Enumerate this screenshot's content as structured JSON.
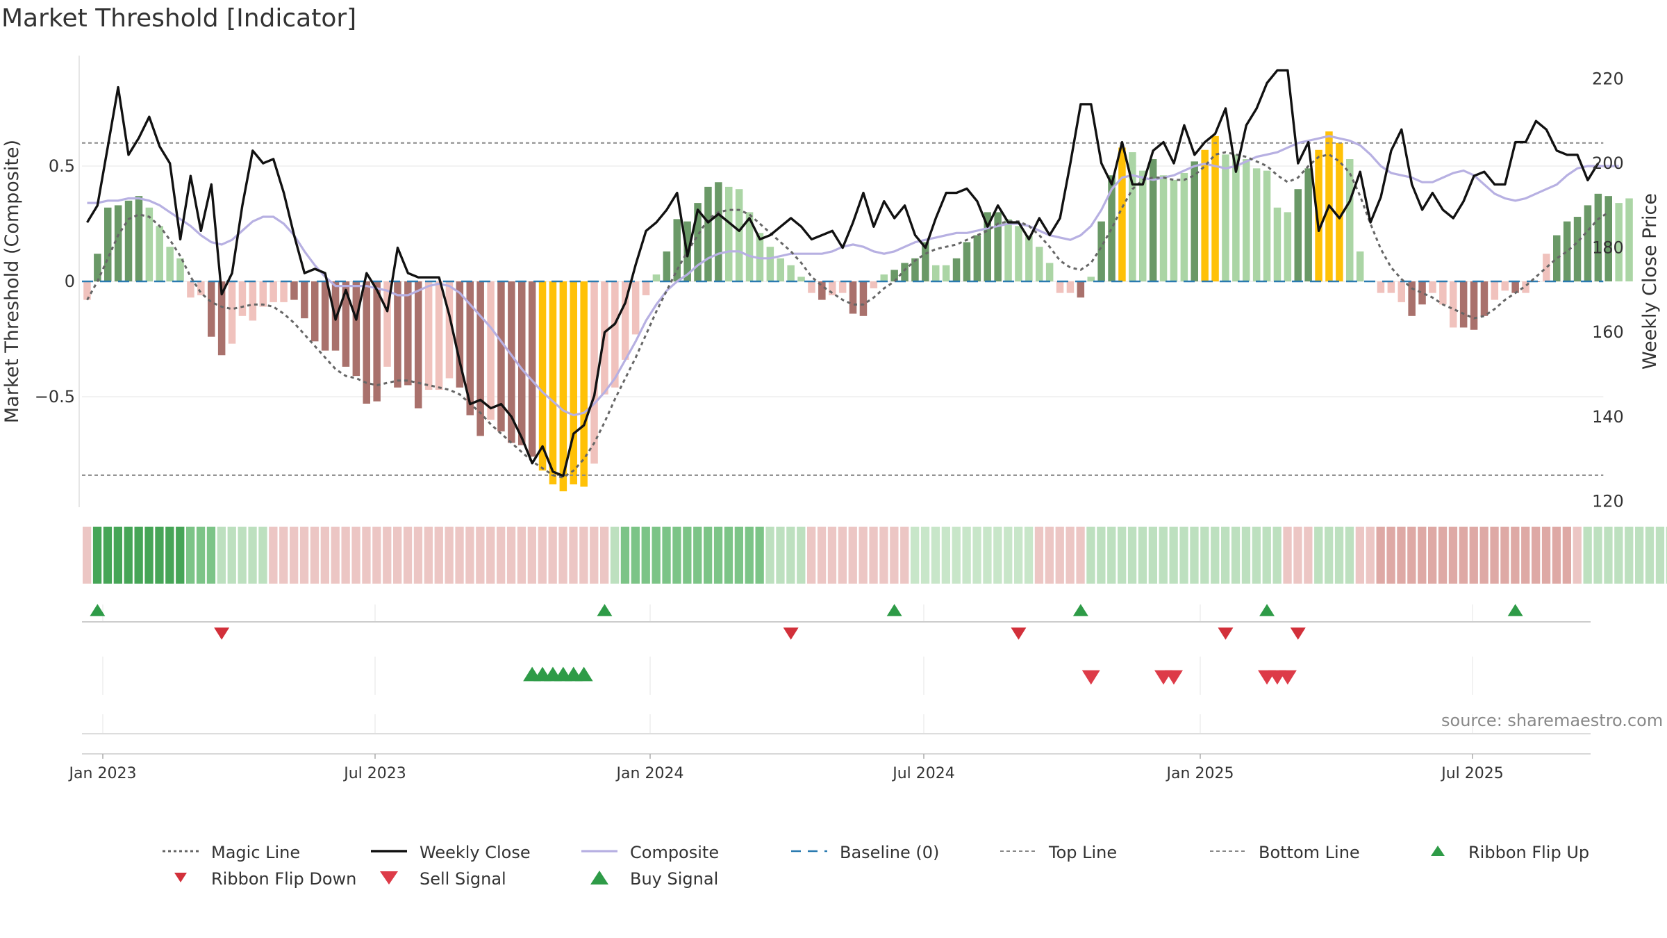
{
  "title": "Market Threshold [Indicator]",
  "source": "source: sharemaestro.com",
  "colors": {
    "dark_green": "#6a9967",
    "light_green": "#abd5a5",
    "dark_red": "#a9716c",
    "light_red": "#f0c2bd",
    "gold": "#ffc107",
    "close": "#111111",
    "composite": "#b7b0e2",
    "magic": "#666666",
    "baseline": "#2a7ab0",
    "threshold": "#888888",
    "buy": "#2e9b47",
    "sell": "#dd3b48"
  },
  "chart_data": {
    "type": "bar",
    "title": "Market Threshold [Indicator]",
    "left_axis": {
      "label": "Market Threshold (Composite)",
      "ticks": [
        0.5,
        0,
        -0.5
      ],
      "tick_labels": [
        "0.5",
        "0",
        "−0.5"
      ],
      "range": [
        -0.97,
        1.0
      ]
    },
    "right_axis": {
      "label": "Weekly Close Price",
      "ticks": [
        120,
        140,
        160,
        180,
        200,
        220
      ],
      "tick_labels": [
        "120",
        "140",
        "160",
        "180",
        "200",
        "220"
      ],
      "range": [
        118,
        230
      ]
    },
    "x_ticks": [
      "Jan 2023",
      "Jul 2023",
      "Jan 2024",
      "Jul 2024",
      "Jan 2025",
      "Jul 2025"
    ],
    "top_line": 0.6,
    "bottom_line": -0.84,
    "weeks": 147,
    "bar_values": [
      -0.08,
      0.12,
      0.32,
      0.33,
      0.35,
      0.37,
      0.32,
      0.24,
      0.15,
      0.1,
      -0.07,
      -0.06,
      -0.24,
      -0.32,
      -0.27,
      -0.15,
      -0.17,
      -0.11,
      -0.09,
      -0.09,
      -0.08,
      -0.16,
      -0.26,
      -0.3,
      -0.3,
      -0.37,
      -0.41,
      -0.53,
      -0.52,
      -0.37,
      -0.46,
      -0.45,
      -0.55,
      -0.47,
      -0.47,
      -0.42,
      -0.46,
      -0.58,
      -0.67,
      -0.6,
      -0.65,
      -0.7,
      -0.71,
      -0.76,
      -0.82,
      -0.88,
      -0.91,
      -0.88,
      -0.89,
      -0.79,
      -0.49,
      -0.46,
      -0.34,
      -0.23,
      -0.06,
      0.03,
      0.13,
      0.27,
      0.26,
      0.34,
      0.41,
      0.43,
      0.41,
      0.4,
      0.3,
      0.21,
      0.15,
      0.1,
      0.07,
      0.02,
      -0.05,
      -0.08,
      -0.06,
      -0.05,
      -0.14,
      -0.15,
      -0.03,
      0.03,
      0.05,
      0.08,
      0.1,
      0.17,
      0.07,
      0.07,
      0.1,
      0.17,
      0.2,
      0.3,
      0.3,
      0.27,
      0.24,
      0.2,
      0.15,
      0.08,
      -0.05,
      -0.05,
      -0.07,
      0.02,
      0.26,
      0.46,
      0.58,
      0.56,
      0.48,
      0.53,
      0.46,
      0.44,
      0.47,
      0.52,
      0.57,
      0.63,
      0.55,
      0.55,
      0.53,
      0.49,
      0.48,
      0.32,
      0.3,
      0.4,
      0.49,
      0.57,
      0.65,
      0.6,
      0.53,
      0.13,
      0.0,
      -0.05,
      -0.05,
      -0.09,
      -0.15,
      -0.1,
      -0.05,
      -0.1,
      -0.2,
      -0.2,
      -0.21,
      -0.15,
      -0.08,
      -0.04,
      -0.05,
      -0.05,
      0.0,
      0.12,
      0.2,
      0.26,
      0.28,
      0.33,
      0.38,
      0.37,
      0.34,
      0.36
    ],
    "bar_styles": [
      "lr",
      "dg",
      "dg",
      "dg",
      "dg",
      "dg",
      "lg",
      "lg",
      "lg",
      "lg",
      "lr",
      "lr",
      "dr",
      "dr",
      "lr",
      "lr",
      "lr",
      "lr",
      "lr",
      "lr",
      "dr",
      "dr",
      "dr",
      "dr",
      "dr",
      "dr",
      "dr",
      "dr",
      "dr",
      "lr",
      "dr",
      "dr",
      "dr",
      "lr",
      "lr",
      "lr",
      "dr",
      "dr",
      "dr",
      "lr",
      "dr",
      "dr",
      "dr",
      "dr",
      "go",
      "go",
      "go",
      "go",
      "go",
      "lr",
      "lr",
      "lr",
      "lr",
      "lr",
      "lr",
      "lg",
      "dg",
      "dg",
      "dg",
      "dg",
      "dg",
      "dg",
      "lg",
      "lg",
      "lg",
      "lg",
      "lg",
      "lg",
      "lg",
      "lg",
      "lr",
      "dr",
      "lr",
      "lr",
      "dr",
      "dr",
      "lr",
      "lg",
      "dg",
      "dg",
      "dg",
      "dg",
      "lg",
      "lg",
      "dg",
      "dg",
      "dg",
      "dg",
      "dg",
      "lg",
      "lg",
      "lg",
      "lg",
      "lg",
      "lr",
      "lr",
      "dr",
      "lg",
      "dg",
      "dg",
      "go",
      "lg",
      "lg",
      "dg",
      "lg",
      "lg",
      "lg",
      "dg",
      "go",
      "go",
      "lg",
      "lg",
      "lg",
      "lg",
      "lg",
      "lg",
      "lg",
      "dg",
      "dg",
      "go",
      "go",
      "go",
      "lg",
      "lg",
      "lg",
      "lr",
      "lr",
      "lr",
      "dr",
      "dr",
      "lr",
      "lr",
      "lr",
      "dr",
      "dr",
      "dr",
      "lr",
      "lr",
      "dr",
      "lr",
      "dr",
      "lr",
      "dg",
      "dg",
      "dg",
      "dg",
      "dg",
      "dg",
      "lg",
      "lg",
      "dg"
    ],
    "composite": [
      0.34,
      0.34,
      0.35,
      0.35,
      0.36,
      0.36,
      0.35,
      0.33,
      0.3,
      0.27,
      0.24,
      0.2,
      0.17,
      0.16,
      0.18,
      0.22,
      0.26,
      0.28,
      0.28,
      0.25,
      0.2,
      0.13,
      0.07,
      0.02,
      -0.02,
      -0.02,
      -0.02,
      -0.02,
      -0.03,
      -0.04,
      -0.06,
      -0.06,
      -0.04,
      -0.02,
      -0.01,
      -0.02,
      -0.05,
      -0.1,
      -0.15,
      -0.2,
      -0.26,
      -0.32,
      -0.38,
      -0.43,
      -0.48,
      -0.52,
      -0.56,
      -0.58,
      -0.57,
      -0.53,
      -0.48,
      -0.42,
      -0.34,
      -0.26,
      -0.17,
      -0.1,
      -0.04,
      0.0,
      0.03,
      0.07,
      0.1,
      0.12,
      0.13,
      0.13,
      0.11,
      0.1,
      0.1,
      0.11,
      0.12,
      0.12,
      0.12,
      0.12,
      0.13,
      0.15,
      0.16,
      0.15,
      0.13,
      0.12,
      0.13,
      0.15,
      0.17,
      0.18,
      0.19,
      0.2,
      0.21,
      0.21,
      0.22,
      0.23,
      0.24,
      0.25,
      0.25,
      0.24,
      0.22,
      0.2,
      0.19,
      0.18,
      0.2,
      0.24,
      0.31,
      0.4,
      0.45,
      0.46,
      0.45,
      0.44,
      0.45,
      0.46,
      0.48,
      0.5,
      0.51,
      0.5,
      0.49,
      0.5,
      0.52,
      0.54,
      0.55,
      0.56,
      0.58,
      0.6,
      0.61,
      0.62,
      0.63,
      0.62,
      0.61,
      0.59,
      0.55,
      0.5,
      0.47,
      0.46,
      0.45,
      0.43,
      0.43,
      0.45,
      0.47,
      0.48,
      0.46,
      0.42,
      0.38,
      0.36,
      0.35,
      0.36,
      0.38,
      0.4,
      0.42,
      0.46,
      0.49,
      0.5,
      0.5,
      0.5,
      0.5
    ],
    "magic": [
      -0.08,
      0.0,
      0.1,
      0.2,
      0.27,
      0.29,
      0.28,
      0.24,
      0.18,
      0.11,
      0.02,
      -0.05,
      -0.09,
      -0.11,
      -0.12,
      -0.11,
      -0.1,
      -0.1,
      -0.11,
      -0.14,
      -0.18,
      -0.23,
      -0.28,
      -0.33,
      -0.38,
      -0.41,
      -0.42,
      -0.44,
      -0.45,
      -0.44,
      -0.43,
      -0.43,
      -0.44,
      -0.45,
      -0.46,
      -0.47,
      -0.49,
      -0.53,
      -0.57,
      -0.62,
      -0.66,
      -0.7,
      -0.74,
      -0.78,
      -0.81,
      -0.84,
      -0.85,
      -0.82,
      -0.77,
      -0.7,
      -0.61,
      -0.51,
      -0.42,
      -0.33,
      -0.23,
      -0.13,
      -0.04,
      0.05,
      0.13,
      0.2,
      0.27,
      0.3,
      0.31,
      0.31,
      0.29,
      0.25,
      0.21,
      0.17,
      0.13,
      0.08,
      0.02,
      -0.02,
      -0.05,
      -0.08,
      -0.1,
      -0.1,
      -0.07,
      -0.03,
      0.0,
      0.05,
      0.09,
      0.12,
      0.14,
      0.15,
      0.16,
      0.18,
      0.2,
      0.22,
      0.25,
      0.26,
      0.26,
      0.24,
      0.2,
      0.15,
      0.09,
      0.06,
      0.05,
      0.08,
      0.15,
      0.23,
      0.32,
      0.4,
      0.44,
      0.45,
      0.45,
      0.44,
      0.44,
      0.46,
      0.5,
      0.55,
      0.56,
      0.55,
      0.54,
      0.52,
      0.5,
      0.46,
      0.43,
      0.45,
      0.5,
      0.54,
      0.55,
      0.52,
      0.47,
      0.37,
      0.25,
      0.14,
      0.06,
      0.01,
      -0.03,
      -0.05,
      -0.07,
      -0.1,
      -0.12,
      -0.14,
      -0.16,
      -0.15,
      -0.12,
      -0.08,
      -0.05,
      -0.02,
      0.02,
      0.06,
      0.1,
      0.13,
      0.17,
      0.22,
      0.27,
      0.3
    ],
    "weekly_close": [
      186,
      190,
      204,
      218,
      202,
      206,
      211,
      204,
      200,
      182,
      197,
      184,
      195,
      169,
      174,
      190,
      203,
      200,
      201,
      193,
      183,
      174,
      175,
      174,
      163,
      170,
      163,
      174,
      170,
      165,
      180,
      174,
      173,
      173,
      173,
      164,
      153,
      143,
      144,
      142,
      143,
      140,
      135,
      129,
      133,
      127,
      126,
      136,
      138,
      145,
      160,
      162,
      167,
      176,
      184,
      186,
      189,
      193,
      178,
      189,
      186,
      188,
      186,
      184,
      187,
      182,
      183,
      185,
      187,
      185,
      182,
      183,
      184,
      180,
      186,
      193,
      185,
      191,
      187,
      190,
      183,
      180,
      187,
      193,
      193,
      194,
      191,
      185,
      190,
      186,
      186,
      182,
      187,
      183,
      187,
      200,
      214,
      214,
      200,
      195,
      205,
      195,
      195,
      203,
      205,
      200,
      209,
      202,
      205,
      207,
      213,
      198,
      209,
      213,
      219,
      222,
      222,
      200,
      205,
      184,
      190,
      187,
      191,
      198,
      186,
      192,
      203,
      208,
      195,
      189,
      193,
      189,
      187,
      191,
      197,
      198,
      195,
      195,
      205,
      205,
      210,
      208,
      203,
      202,
      202,
      196,
      200
    ],
    "ribbon": [
      "lr",
      "dg",
      "dg",
      "dg",
      "dg",
      "dg",
      "dg",
      "dg",
      "dg",
      "dg",
      "mg",
      "mg",
      "mg",
      "lg",
      "lg",
      "lg",
      "lg",
      "lg",
      "lr",
      "lr",
      "lr",
      "lr",
      "lr",
      "lr",
      "lr",
      "lr",
      "lr",
      "lr",
      "lr",
      "lr",
      "lr",
      "lr",
      "lr",
      "lr",
      "lr",
      "lr",
      "lr",
      "lr",
      "lr",
      "lr",
      "lr",
      "lr",
      "lr",
      "lr",
      "lr",
      "lr",
      "lr",
      "lr",
      "lr",
      "lr",
      "lr",
      "lg",
      "mg",
      "mg",
      "mg",
      "mg",
      "mg",
      "mg",
      "mg",
      "mg",
      "mg",
      "mg",
      "mg",
      "mg",
      "mg",
      "mg",
      "lg",
      "lg",
      "lg",
      "lg",
      "lr",
      "lr",
      "lr",
      "lr",
      "lr",
      "lr",
      "lr",
      "lr",
      "lr",
      "lr",
      "pg",
      "pg",
      "pg",
      "pg",
      "pg",
      "pg",
      "pg",
      "pg",
      "pg",
      "pg",
      "pg",
      "pg",
      "lr",
      "lr",
      "lr",
      "lr",
      "lr",
      "lg",
      "lg",
      "lg",
      "lg",
      "lg",
      "lg",
      "lg",
      "lg",
      "lg",
      "lg",
      "lg",
      "lg",
      "lg",
      "lg",
      "lg",
      "lg",
      "lg",
      "lg",
      "lg",
      "lr",
      "lr",
      "lr",
      "lg",
      "lg",
      "lg",
      "lg",
      "lr",
      "lr",
      "mr",
      "mr",
      "mr",
      "mr",
      "mr",
      "mr",
      "mr",
      "mr",
      "mr",
      "mr",
      "mr",
      "mr",
      "mr",
      "mr",
      "mr",
      "mr",
      "mr",
      "mr",
      "mr",
      "lr",
      "lg",
      "lg",
      "lg",
      "lg",
      "lg",
      "lg",
      "lg",
      "lg",
      "lg"
    ],
    "ribbon_flip_up": [
      1,
      50,
      78,
      96,
      114,
      138
    ],
    "ribbon_flip_down": [
      13,
      68,
      90,
      110,
      117
    ],
    "buy_signals": [
      43,
      44,
      45,
      46,
      47,
      48
    ],
    "sell_signals": [
      97,
      104,
      105,
      114,
      115,
      116
    ]
  },
  "legend": [
    {
      "label": "Magic Line",
      "symbol": "dotted-dark"
    },
    {
      "label": "Weekly Close",
      "symbol": "solid-black"
    },
    {
      "label": "Composite",
      "symbol": "solid-lavender"
    },
    {
      "label": "Baseline (0)",
      "symbol": "dashed-blue"
    },
    {
      "label": "Top Line",
      "symbol": "dotted-grey"
    },
    {
      "label": "Bottom Line",
      "symbol": "dotted-grey"
    },
    {
      "label": "Ribbon Flip Up",
      "symbol": "triangle-up-green"
    },
    {
      "label": "Ribbon Flip Down",
      "symbol": "triangle-down-red"
    },
    {
      "label": "Sell Signal",
      "symbol": "triangle-down-red-large"
    },
    {
      "label": "Buy Signal",
      "symbol": "triangle-up-green-large"
    }
  ]
}
